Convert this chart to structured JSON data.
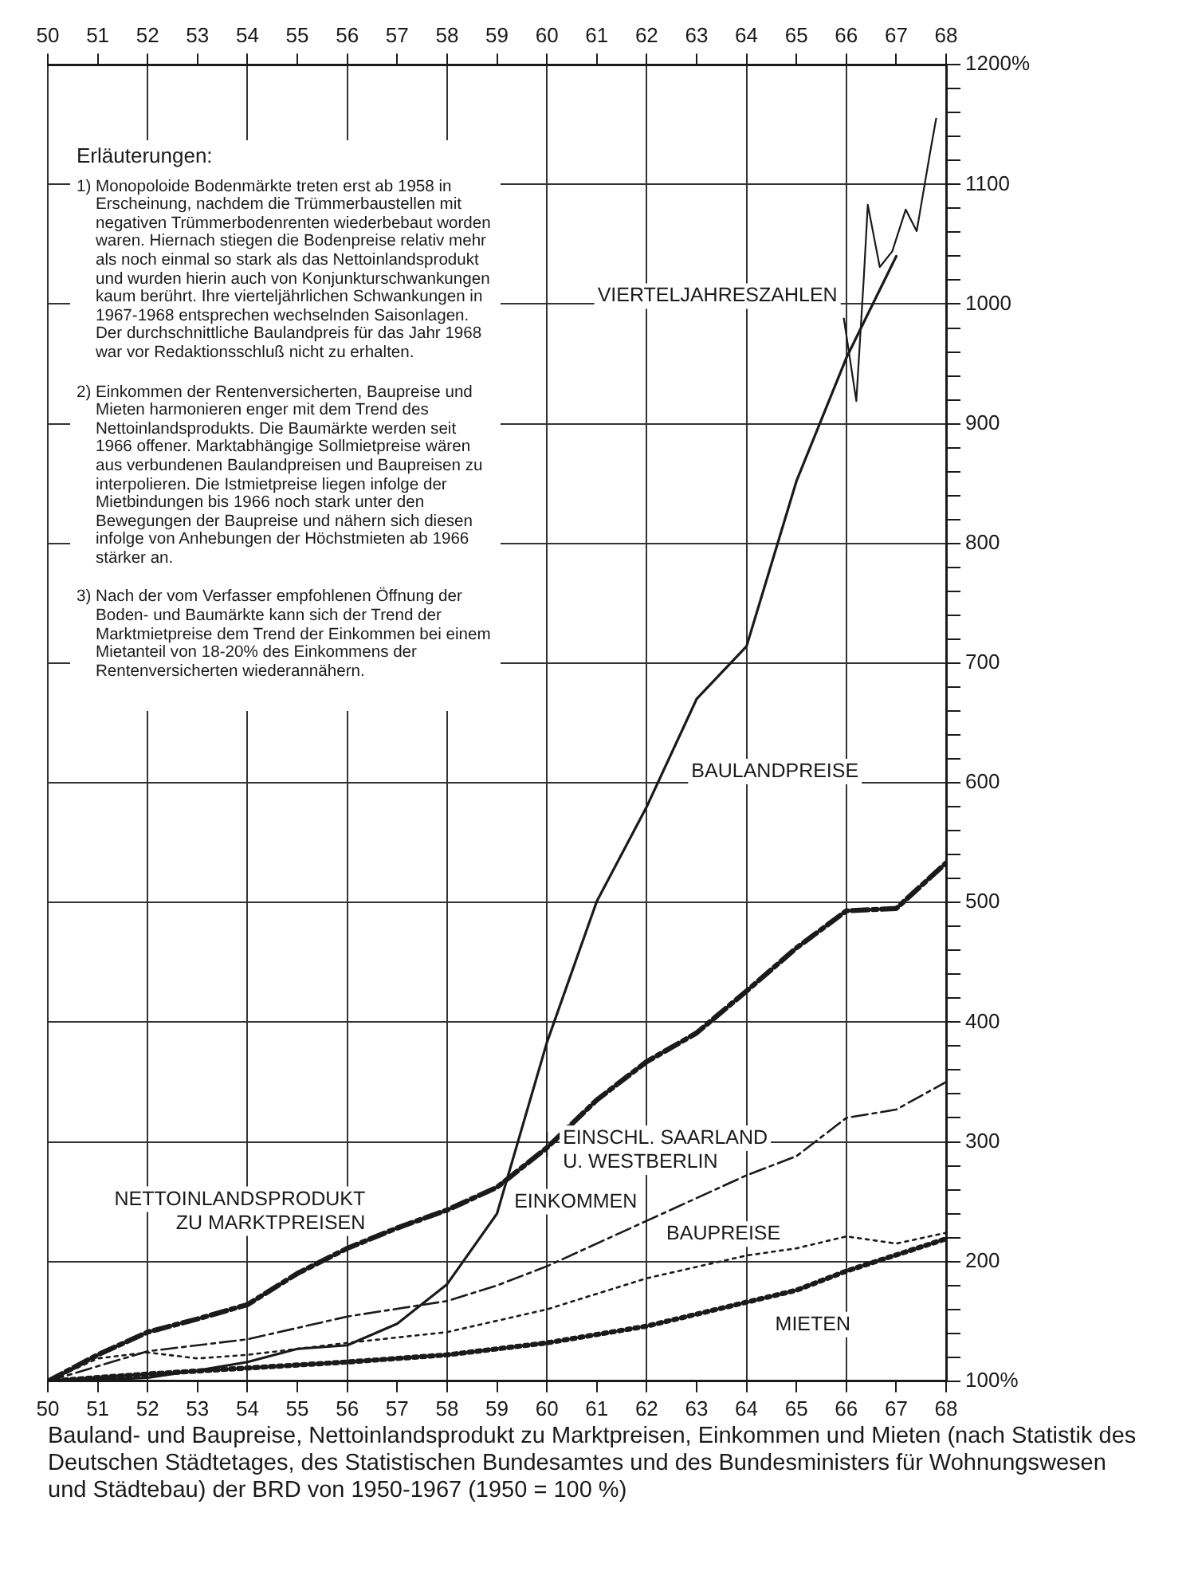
{
  "chart_data": {
    "type": "line",
    "title": "Bauland- und Baupreise, Nettoinlandsprodukt zu Marktpreisen, Einkommen und Mieten (nach Statistik des Deutschen Städtetages, des Statistischen Bundesamtes und des Bundesministers für Wohnungswesen und Städtebau) der BRD von 1950-1967 (1950 = 100 %)",
    "xlim": [
      1950,
      1968
    ],
    "xticks": [
      {
        "value": 1950,
        "label": "50"
      },
      {
        "value": 1951,
        "label": "51"
      },
      {
        "value": 1952,
        "label": "52"
      },
      {
        "value": 1953,
        "label": "53"
      },
      {
        "value": 1954,
        "label": "54"
      },
      {
        "value": 1955,
        "label": "55"
      },
      {
        "value": 1956,
        "label": "56"
      },
      {
        "value": 1957,
        "label": "57"
      },
      {
        "value": 1958,
        "label": "58"
      },
      {
        "value": 1959,
        "label": "59"
      },
      {
        "value": 1960,
        "label": "60"
      },
      {
        "value": 1961,
        "label": "61"
      },
      {
        "value": 1962,
        "label": "62"
      },
      {
        "value": 1963,
        "label": "63"
      },
      {
        "value": 1964,
        "label": "64"
      },
      {
        "value": 1965,
        "label": "65"
      },
      {
        "value": 1966,
        "label": "66"
      },
      {
        "value": 1967,
        "label": "67"
      },
      {
        "value": 1968,
        "label": "68"
      }
    ],
    "x2lim": [
      1950,
      1968
    ],
    "x2ticks": [
      {
        "value": 1950,
        "label": "50"
      },
      {
        "value": 1951,
        "label": "51"
      },
      {
        "value": 1952,
        "label": "52"
      },
      {
        "value": 1953,
        "label": "53"
      },
      {
        "value": 1954,
        "label": "54"
      },
      {
        "value": 1955,
        "label": "55"
      },
      {
        "value": 1956,
        "label": "56"
      },
      {
        "value": 1957,
        "label": "57"
      },
      {
        "value": 1958,
        "label": "58"
      },
      {
        "value": 1959,
        "label": "59"
      },
      {
        "value": 1960,
        "label": "60"
      },
      {
        "value": 1961,
        "label": "61"
      },
      {
        "value": 1962,
        "label": "62"
      },
      {
        "value": 1963,
        "label": "63"
      },
      {
        "value": 1964,
        "label": "64"
      },
      {
        "value": 1965,
        "label": "65"
      },
      {
        "value": 1966,
        "label": "66"
      },
      {
        "value": 1967,
        "label": "67"
      },
      {
        "value": 1968,
        "label": "68"
      }
    ],
    "ylim": [
      100,
      1200
    ],
    "yticks": [
      {
        "value": 100,
        "label": "100%"
      },
      {
        "value": 120,
        "label": null
      },
      {
        "value": 140,
        "label": null
      },
      {
        "value": 160,
        "label": null
      },
      {
        "value": 180,
        "label": null
      },
      200,
      {
        "value": 220,
        "label": null
      },
      {
        "value": 240,
        "label": null
      },
      {
        "value": 260,
        "label": null
      },
      {
        "value": 280,
        "label": null
      },
      300,
      {
        "value": 320,
        "label": null
      },
      {
        "value": 340,
        "label": null
      },
      {
        "value": 360,
        "label": null
      },
      {
        "value": 380,
        "label": null
      },
      400,
      {
        "value": 420,
        "label": null
      },
      {
        "value": 440,
        "label": null
      },
      {
        "value": 460,
        "label": null
      },
      {
        "value": 480,
        "label": null
      },
      500,
      {
        "value": 520,
        "label": null
      },
      {
        "value": 540,
        "label": null
      },
      {
        "value": 560,
        "label": null
      },
      {
        "value": 580,
        "label": null
      },
      600,
      {
        "value": 620,
        "label": null
      },
      {
        "value": 640,
        "label": null
      },
      {
        "value": 660,
        "label": null
      },
      {
        "value": 680,
        "label": null
      },
      700,
      {
        "value": 720,
        "label": null
      },
      {
        "value": 740,
        "label": null
      },
      {
        "value": 760,
        "label": null
      },
      {
        "value": 780,
        "label": null
      },
      800,
      {
        "value": 820,
        "label": null
      },
      {
        "value": 840,
        "label": null
      },
      {
        "value": 860,
        "label": null
      },
      {
        "value": 880,
        "label": null
      },
      900,
      {
        "value": 920,
        "label": null
      },
      {
        "value": 940,
        "label": null
      },
      {
        "value": 960,
        "label": null
      },
      {
        "value": 980,
        "label": null
      },
      1000,
      {
        "value": 1020,
        "label": null
      },
      {
        "value": 1040,
        "label": null
      },
      {
        "value": 1060,
        "label": null
      },
      {
        "value": 1080,
        "label": null
      },
      1100,
      {
        "value": 1120,
        "label": null
      },
      {
        "value": 1140,
        "label": null
      },
      {
        "value": 1160,
        "label": null
      },
      {
        "value": 1180,
        "label": null
      },
      {
        "value": 1200,
        "label": "1200%"
      }
    ],
    "grid": true,
    "legend": false,
    "marker": "none",
    "series": [
      {
        "name": "BAULANDPREISE",
        "color": "#1a1a1a",
        "line_style": "solid",
        "x": [
          1950,
          1951,
          1952,
          1953,
          1954,
          1955,
          1956,
          1957,
          1958,
          1959,
          1960,
          1961,
          1962,
          1963,
          1964,
          1965,
          1966,
          1967
        ],
        "values": [
          100,
          101,
          103,
          109,
          116,
          127,
          130,
          148,
          181,
          240,
          383,
          501,
          580,
          670,
          714,
          852,
          955,
          1040
        ]
      },
      {
        "name": "VIERTELJAHRESZAHLEN",
        "color": "#1a1a1a",
        "line_style": "solid",
        "x": [
          1965.95,
          1966.2,
          1966.35,
          1966.43,
          1966.67,
          1966.92,
          1967.19,
          1967.41,
          1967.68,
          1967.8
        ],
        "values": [
          988,
          919,
          1022,
          1083,
          1031,
          1044,
          1079,
          1061,
          1127,
          1155
        ]
      },
      {
        "name": "NETTOINLANDSPRODUKT ZU MARKTPREISEN",
        "color": "#1a1a1a",
        "line_style": "dashed",
        "x": [
          1950,
          1951,
          1952,
          1953,
          1954,
          1955,
          1956,
          1957,
          1958,
          1959,
          1960,
          1961,
          1962,
          1963,
          1964,
          1965,
          1966,
          1967,
          1968
        ],
        "values": [
          100,
          122,
          141,
          152,
          164,
          190,
          211,
          228,
          243,
          262,
          295,
          335,
          367,
          391,
          426,
          462,
          493,
          495,
          533
        ]
      },
      {
        "name": "EINKOMMEN",
        "color": "#1a1a1a",
        "line_style": "dashed",
        "x": [
          1950,
          1952,
          1954,
          1956,
          1958,
          1959,
          1960,
          1962,
          1964,
          1965,
          1966,
          1967,
          1968
        ],
        "values": [
          100,
          125,
          135,
          154,
          167,
          180,
          196,
          234,
          272,
          288,
          320,
          327,
          350
        ]
      },
      {
        "name": "BAUPREISE",
        "color": "#1a1a1a",
        "line_style": "dotted",
        "x": [
          1950,
          1951,
          1952,
          1953,
          1954,
          1956,
          1958,
          1960,
          1962,
          1964,
          1965,
          1966,
          1967,
          1968
        ],
        "values": [
          100,
          119,
          124,
          119,
          122,
          132,
          141,
          160,
          186,
          205,
          211,
          221,
          215,
          224
        ]
      },
      {
        "name": "MIETEN",
        "color": "#1a1a1a",
        "line_style": "dotted",
        "x": [
          1950,
          1952,
          1954,
          1956,
          1958,
          1960,
          1962,
          1964,
          1965,
          1966,
          1968
        ],
        "values": [
          100,
          106,
          111,
          116,
          122,
          132,
          146,
          166,
          176,
          192,
          219
        ]
      }
    ],
    "annotations": [
      {
        "text": "EINSCHL. SAARLAND U. WESTBERLIN",
        "x": 1960,
        "y": 295
      },
      "Erläuterungen:",
      "1) Monopoloide Bodenmärkte treten erst ab 1958 in Erscheinung, nachdem die Trümmerbaustellen mit negativen Trümmerbodenrenten wiederbebaut worden waren. Hiernach stiegen die Bodenpreise relativ mehr als noch einmal so stark als das Nettoinlandsprodukt und wurden hierin auch von Konjunkturschwankungen kaum berührt. Ihre vierteljährlichen Schwankungen in 1967-1968 entsprechen wechselnden Saisonlagen. Der durchschnittliche Baulandpreis für das Jahr 1968 war vor Redaktionsschluß nicht zu erhalten.",
      "2) Einkommen der Rentenversicherten, Baupreise und Mieten harmonieren enger mit dem Trend des Nettoinlandsprodukts. Die Baumärkte werden seit 1966 offener. Marktabhängige Sollmietpreise wären aus verbundenen Baulandpreisen und Baupreisen zu interpolieren. Die Istmietpreise liegen infolge der Mietbindungen bis 1966 noch stark unter den Bewegungen der Baupreise und nähern sich diesen infolge von Anhebungen der Höchstmieten ab 1966 stärker an.",
      "3) Nach der vom Verfasser empfohlenen Öffnung der Boden- und Baumärkte kann sich der Trend der Marktmietpreise dem Trend der Einkommen bei einem Mietanteil von 18-20% des Einkommens der Rentenversicherten wiederannähern."
    ]
  }
}
